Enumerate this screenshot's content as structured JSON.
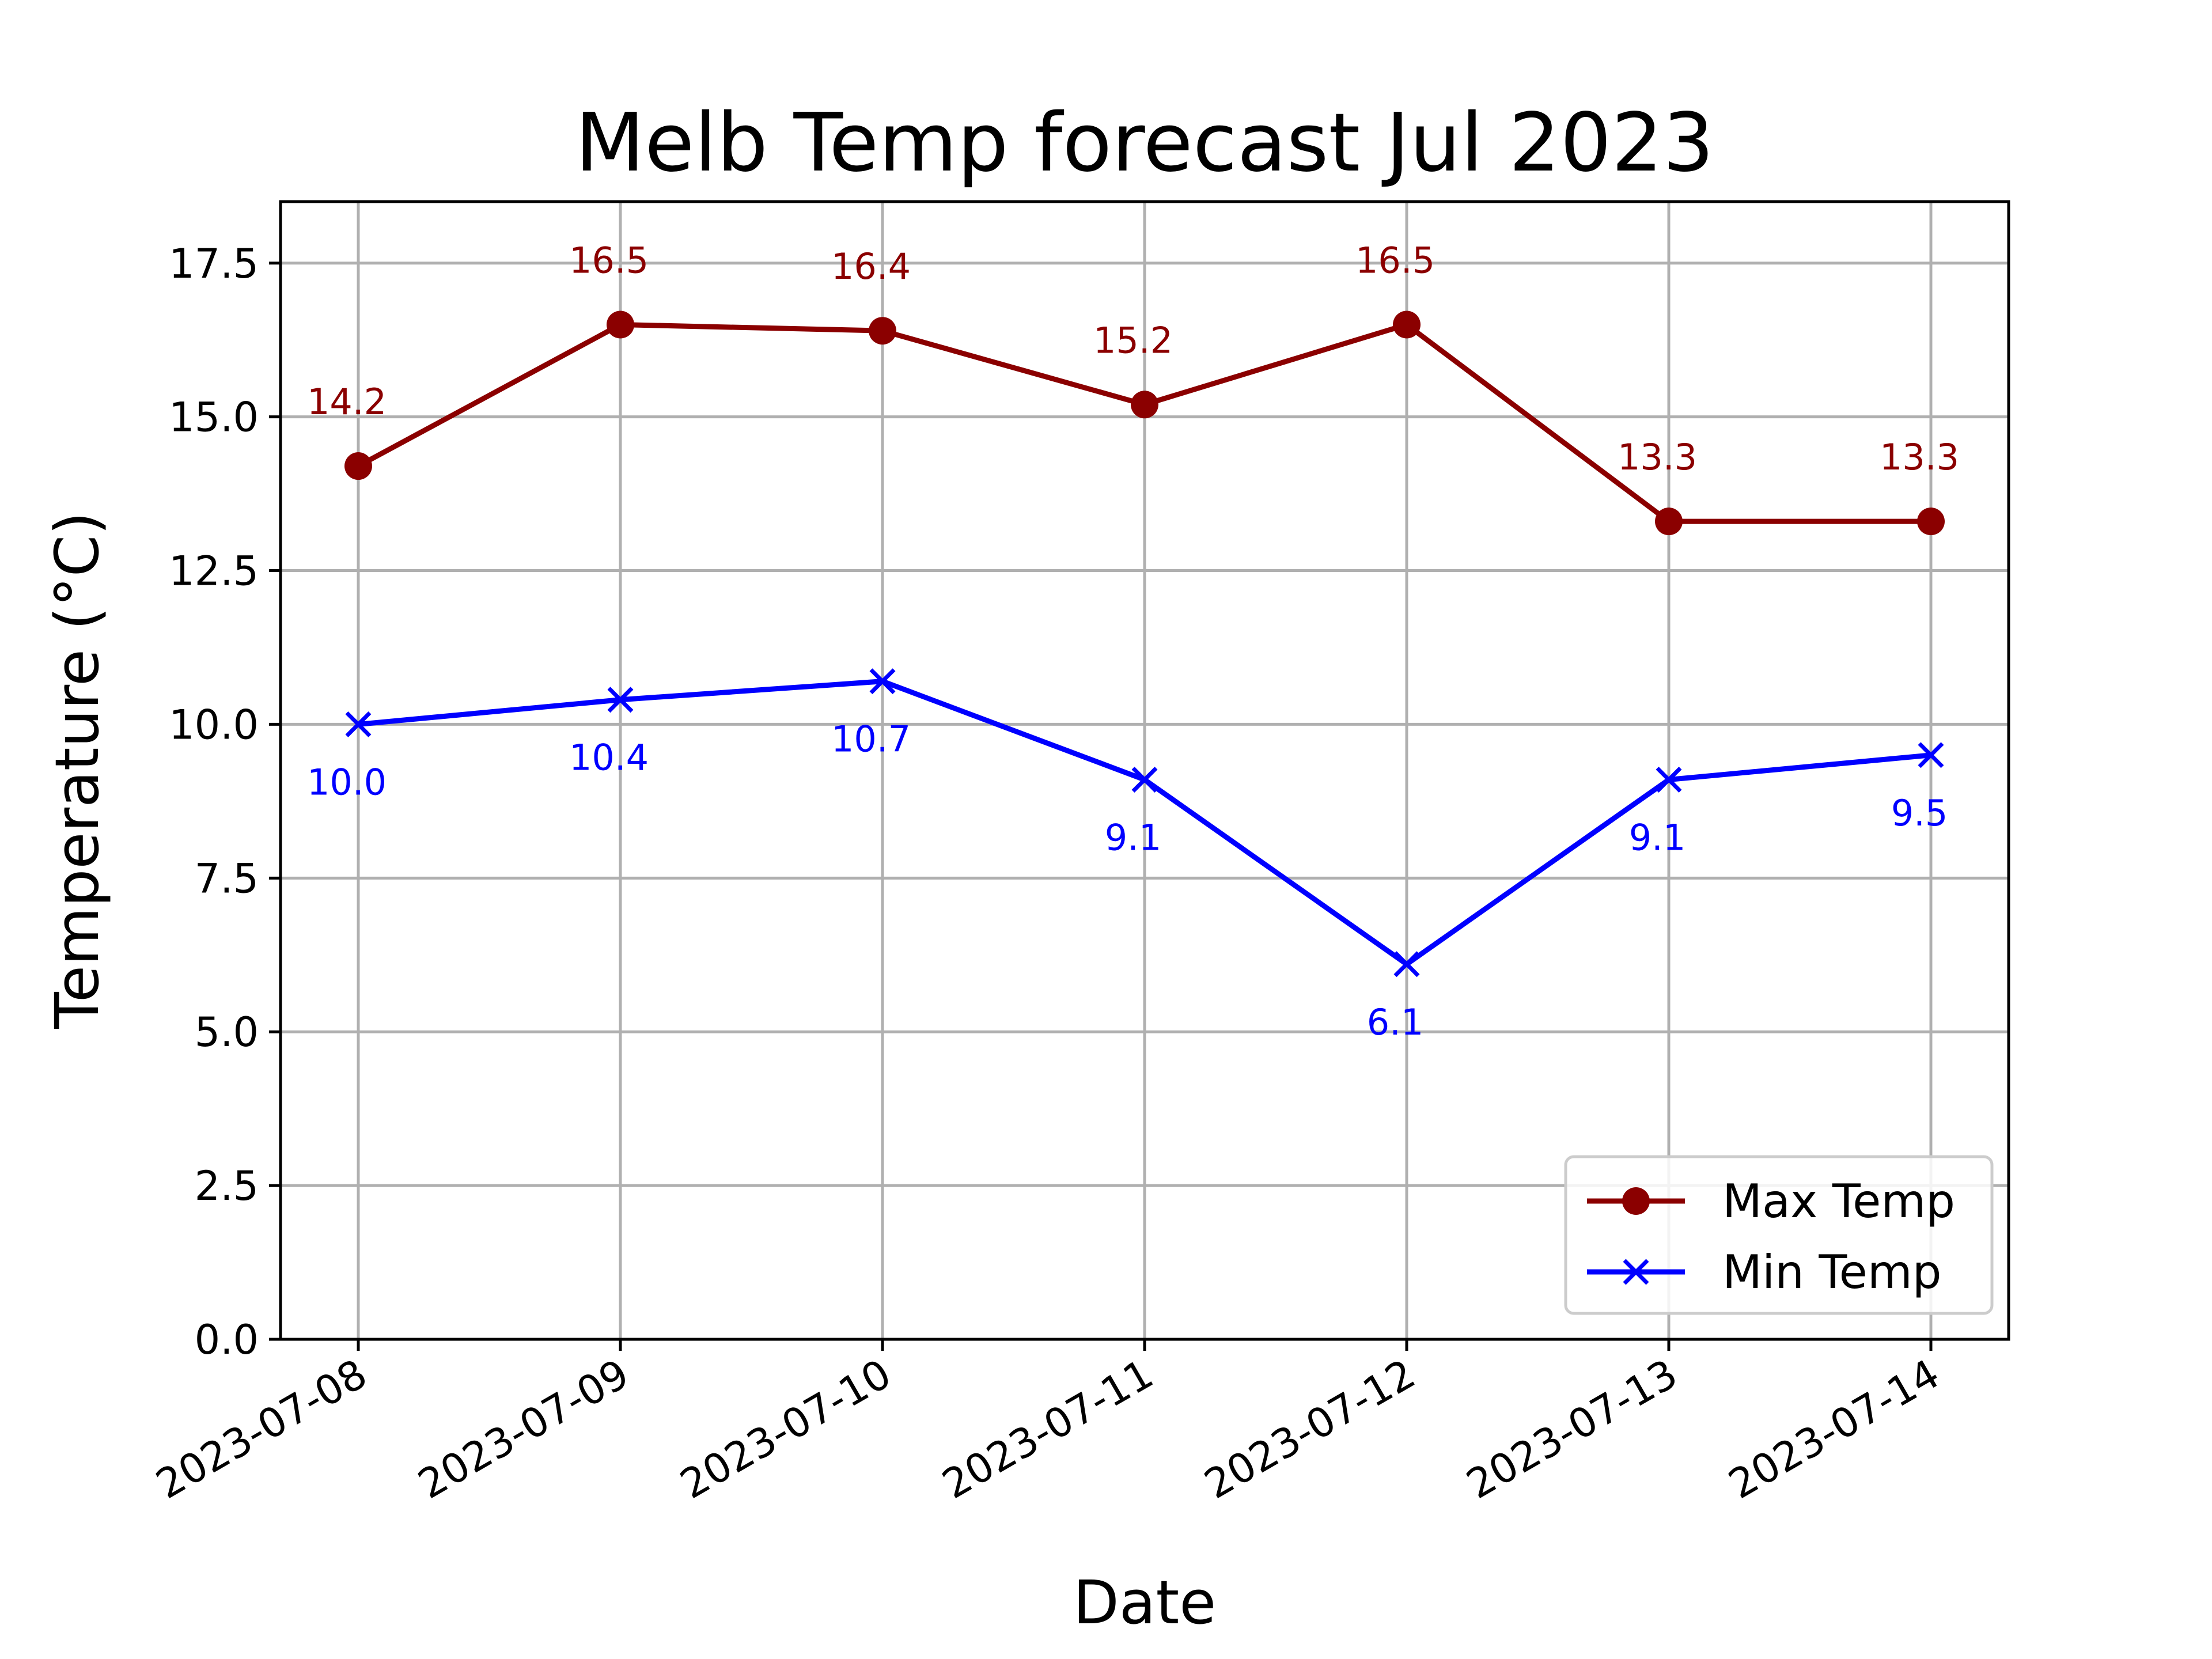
{
  "chart_data": {
    "type": "line",
    "title": "Melb Temp forecast Jul 2023",
    "xlabel": "Date",
    "ylabel": "Temperature (°C)",
    "x": [
      "2023-07-08",
      "2023-07-09",
      "2023-07-10",
      "2023-07-11",
      "2023-07-12",
      "2023-07-13",
      "2023-07-14"
    ],
    "ylim": [
      0,
      18.5
    ],
    "yticks": [
      "0.0",
      "2.5",
      "5.0",
      "7.5",
      "10.0",
      "12.5",
      "15.0",
      "17.5"
    ],
    "grid": true,
    "legend_position": "lower-right",
    "series": [
      {
        "name": "Max Temp",
        "color": "#8b0000",
        "marker": "circle",
        "label_position": "above",
        "values": [
          14.2,
          16.5,
          16.4,
          15.2,
          16.5,
          13.3,
          13.3
        ],
        "labels": [
          "14.2",
          "16.5",
          "16.4",
          "15.2",
          "16.5",
          "13.3",
          "13.3"
        ]
      },
      {
        "name": "Min Temp",
        "color": "#0000ff",
        "marker": "x",
        "label_position": "below",
        "values": [
          10.0,
          10.4,
          10.7,
          9.1,
          6.1,
          9.1,
          9.5
        ],
        "labels": [
          "10.0",
          "10.4",
          "10.7",
          "9.1",
          "6.1",
          "9.1",
          "9.5"
        ]
      }
    ]
  }
}
